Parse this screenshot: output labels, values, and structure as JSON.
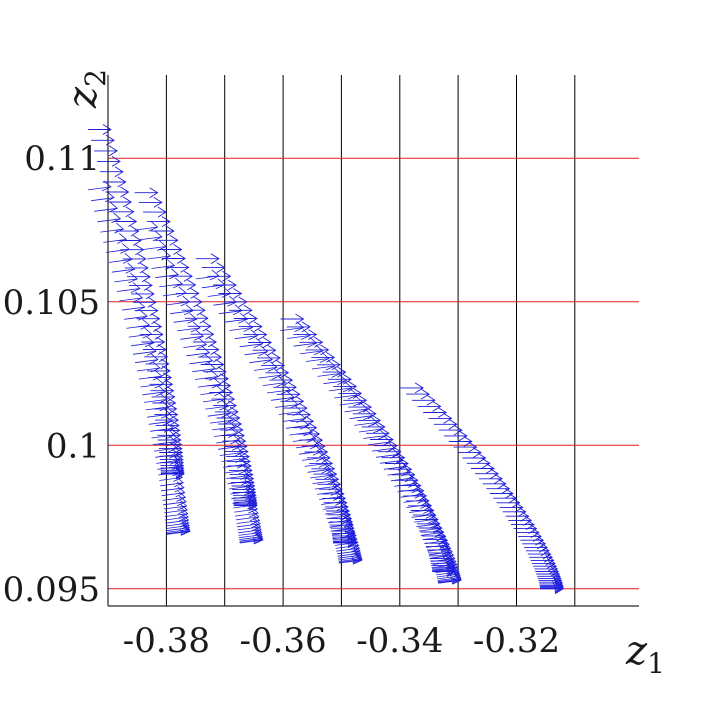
{
  "chart_data": {
    "type": "quiver",
    "xlabel": "z_1",
    "ylabel": "z_2",
    "xlabel_parts": {
      "base": "z",
      "sub": "1"
    },
    "ylabel_parts": {
      "base": "z",
      "sub": "2"
    },
    "xlim": [
      -0.39,
      -0.299
    ],
    "ylim": [
      0.0944,
      0.1129
    ],
    "x_ticks": [
      {
        "value": -0.38,
        "label": "-0.38"
      },
      {
        "value": -0.36,
        "label": "-0.36"
      },
      {
        "value": -0.34,
        "label": "-0.34"
      },
      {
        "value": -0.32,
        "label": "-0.32"
      }
    ],
    "y_ticks": [
      {
        "value": 0.095,
        "label": "0.095"
      },
      {
        "value": 0.1,
        "label": "0.1"
      },
      {
        "value": 0.105,
        "label": "0.105"
      },
      {
        "value": 0.11,
        "label": "0.11"
      }
    ],
    "vertical_grid_x": [
      -0.39,
      -0.38,
      -0.37,
      -0.36,
      -0.35,
      -0.34,
      -0.33,
      -0.32,
      -0.31
    ],
    "horizontal_grid_y": [
      0.095,
      0.1,
      0.105,
      0.11
    ],
    "grid": true,
    "colors": {
      "vertical_grid": "#000000",
      "horizontal_grid": "#e02020",
      "arrows": "#1f1fdc",
      "axes": "#262626"
    },
    "series": [
      {
        "start": [
          -0.3895,
          0.111
        ],
        "end": [
          -0.377,
          0.099
        ],
        "y_shift": 0.002,
        "n": 52
      },
      {
        "start": [
          -0.3815,
          0.1088
        ],
        "end": [
          -0.3645,
          0.0979
        ],
        "y_shift": 0.0012,
        "n": 52
      },
      {
        "start": [
          -0.371,
          0.1065
        ],
        "end": [
          -0.3475,
          0.0966
        ],
        "y_shift": 0.0006,
        "n": 52
      },
      {
        "start": [
          -0.3565,
          0.1044
        ],
        "end": [
          -0.3305,
          0.0956
        ],
        "y_shift": 0.0003,
        "n": 52
      },
      {
        "start": [
          -0.336,
          0.102
        ],
        "end": [
          -0.312,
          0.095
        ],
        "y_shift": 0.0001,
        "n": 52
      }
    ]
  }
}
